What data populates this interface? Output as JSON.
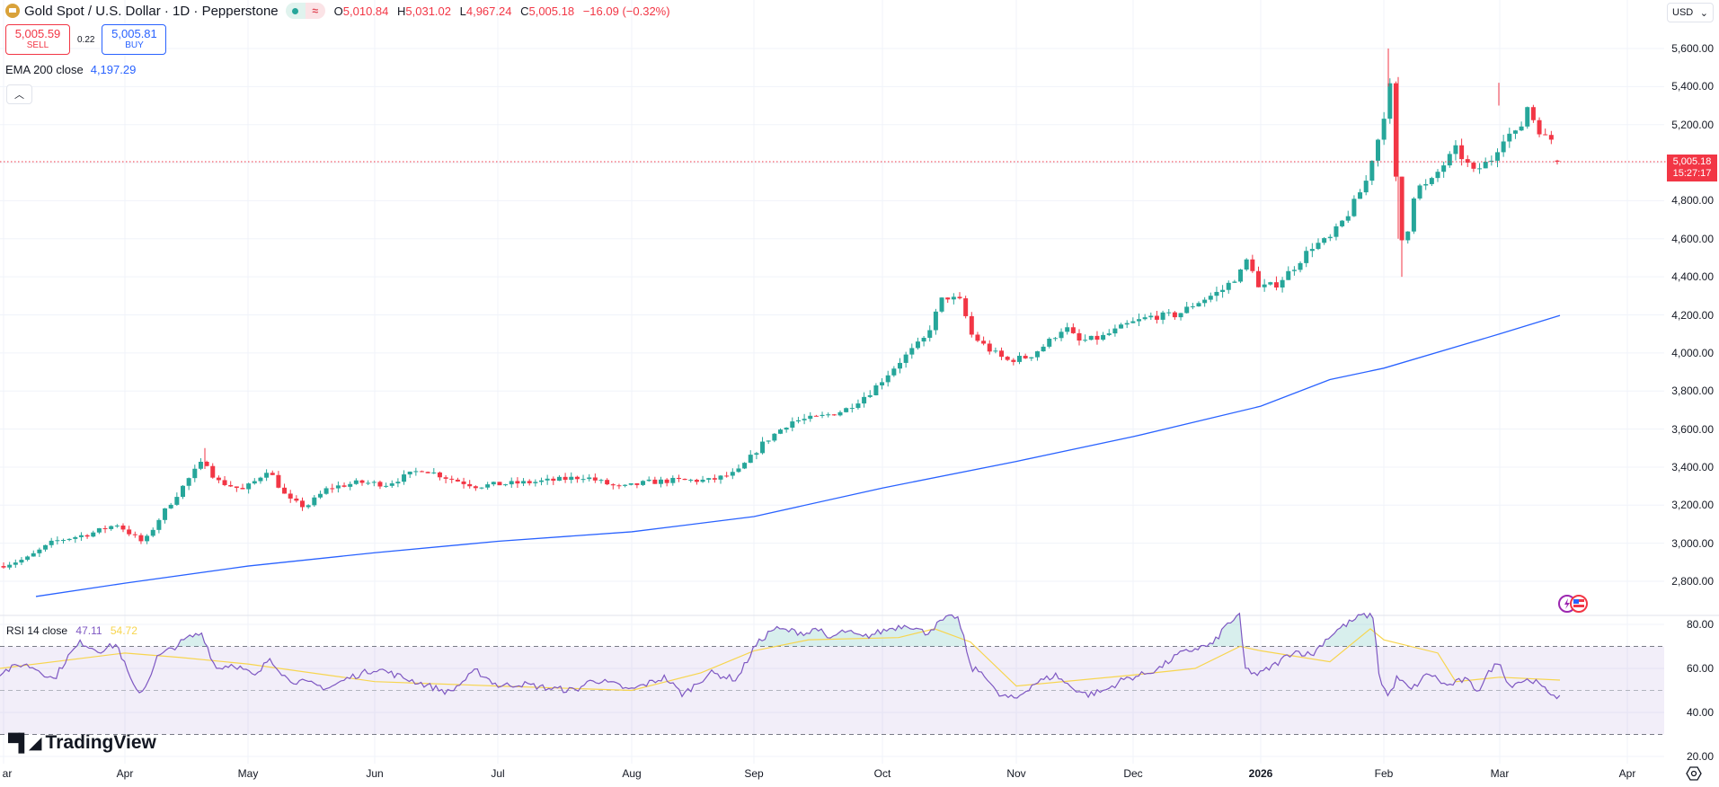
{
  "header": {
    "symbol_title": "Gold Spot / U.S. Dollar · 1D · Pepperstone",
    "symbol_icon": "gold-bar-icon",
    "market_status": "open-dot",
    "data_delay_icon": "approx-icon",
    "ohlc": {
      "o_label": "O",
      "o": "5,010.84",
      "h_label": "H",
      "h": "5,031.02",
      "l_label": "L",
      "l": "4,967.24",
      "c_label": "C",
      "c": "5,005.18",
      "change": "−16.09 (−0.32%)"
    }
  },
  "trade": {
    "sell_price": "5,005.59",
    "sell_label": "SELL",
    "spread": "0.22",
    "buy_price": "5,005.81",
    "buy_label": "BUY"
  },
  "indicators": {
    "ema": {
      "label": "EMA 200 close",
      "value": "4,197.29",
      "color": "#2962ff"
    },
    "rsi": {
      "label": "RSI 14 close",
      "value": "47.11",
      "ma_value": "54.72",
      "color": "#7e57c2",
      "ma_color": "#f7d54f"
    },
    "collapse_icon": "chevron-up-icon"
  },
  "price_axis": {
    "currency": "USD",
    "labels": [
      "5,600.00",
      "5,400.00",
      "5,200.00",
      "4,800.00",
      "4,600.00",
      "4,400.00",
      "4,200.00",
      "4,000.00",
      "3,800.00",
      "3,600.00",
      "3,400.00",
      "3,200.00",
      "3,000.00",
      "2,800.00"
    ],
    "last_price": "5,005.18",
    "countdown": "15:27:17"
  },
  "rsi_axis": {
    "labels": [
      "80.00",
      "60.00",
      "40.00",
      "20.00"
    ]
  },
  "time_axis": {
    "labels": [
      "ar",
      "Apr",
      "May",
      "Jun",
      "Jul",
      "Aug",
      "Sep",
      "Oct",
      "Nov",
      "Dec",
      "2026",
      "Feb",
      "Mar",
      "Apr"
    ]
  },
  "branding": {
    "logo_text": "TradingView"
  },
  "colors": {
    "up": "#26a69a",
    "down": "#f23645",
    "ema": "#2962ff",
    "rsi": "#7e57c2",
    "rsi_ma": "#f7d54f",
    "rsi_band": "#7e57c2",
    "grid": "#f0f3fa"
  },
  "chart_data": [
    {
      "type": "candlestick",
      "title": "Gold Spot / U.S. Dollar · 1D · Pepperstone",
      "xlabel": "",
      "ylabel": "USD",
      "ylim": [
        2700,
        5650
      ],
      "grid": true,
      "x_ticks": [
        "Mar",
        "Apr",
        "May",
        "Jun",
        "Jul",
        "Aug",
        "Sep",
        "Oct",
        "Nov",
        "Dec",
        "2026",
        "Feb",
        "Mar",
        "Apr"
      ],
      "y_ticks": [
        2800,
        3000,
        3200,
        3400,
        3600,
        3800,
        4000,
        4200,
        4400,
        4600,
        4800,
        5000,
        5200,
        5400,
        5600
      ],
      "approx_monthly_close": {
        "x": [
          "Mar 2025",
          "Apr 2025",
          "May 2025",
          "Jun 2025",
          "Jul 2025",
          "Aug 2025",
          "Sep 2025",
          "Oct 2025",
          "Nov 2025",
          "Dec 2025",
          "Jan 2026",
          "Feb 2026",
          "Mar 2026 (to date)"
        ],
        "close": [
          3120,
          3290,
          3300,
          3300,
          3290,
          3450,
          3860,
          4000,
          4230,
          4320,
          4880,
          5250,
          5005
        ]
      },
      "notable_points": {
        "april_high": 3500,
        "mid_october_high": 4380,
        "late_october_low": 3890,
        "late_january_high": 5600,
        "early_february_low": 4400,
        "early_march_high": 5420,
        "last_close": 5005.18
      },
      "series": [
        {
          "name": "EMA 200 close",
          "last_value": 4197.29,
          "x": [
            "Mar 2025",
            "Apr 2025",
            "May 2025",
            "Jun 2025",
            "Jul 2025",
            "Aug 2025",
            "Sep 2025",
            "Oct 2025",
            "Nov 2025",
            "Dec 2025",
            "Jan 2026",
            "Feb 2026",
            "Mar 2026"
          ],
          "values": [
            2720,
            2790,
            2880,
            2950,
            3010,
            3060,
            3140,
            3290,
            3430,
            3560,
            3720,
            3920,
            4197
          ]
        }
      ]
    },
    {
      "type": "line",
      "title": "RSI 14 close",
      "ylim": [
        15,
        85
      ],
      "bands": {
        "upper": 70,
        "middle": 50,
        "lower": 30
      },
      "y_ticks": [
        20,
        40,
        60,
        80
      ],
      "series": [
        {
          "name": "RSI",
          "last_value": 47.11,
          "x": [
            "Mar",
            "Apr",
            "Apr-mid",
            "May",
            "Jun",
            "Jul",
            "Aug",
            "Sep",
            "Oct",
            "Oct-mid",
            "Nov",
            "Dec",
            "Jan",
            "Jan-end",
            "Feb",
            "Mar",
            "Mar-mid"
          ],
          "values": [
            55,
            72,
            48,
            74,
            52,
            55,
            48,
            50,
            78,
            84,
            50,
            58,
            66,
            84,
            47,
            62,
            47
          ]
        },
        {
          "name": "RSI-based MA",
          "last_value": 54.72,
          "x": [
            "Mar",
            "Apr",
            "May",
            "Jun",
            "Jul",
            "Aug",
            "Sep",
            "Oct",
            "Nov",
            "Dec",
            "Jan",
            "Jan-end",
            "Feb",
            "Mar",
            "Mar-mid"
          ],
          "values": [
            60,
            67,
            62,
            54,
            55,
            49,
            51,
            73,
            52,
            57,
            68,
            77,
            60,
            56,
            54.7
          ]
        }
      ]
    }
  ]
}
